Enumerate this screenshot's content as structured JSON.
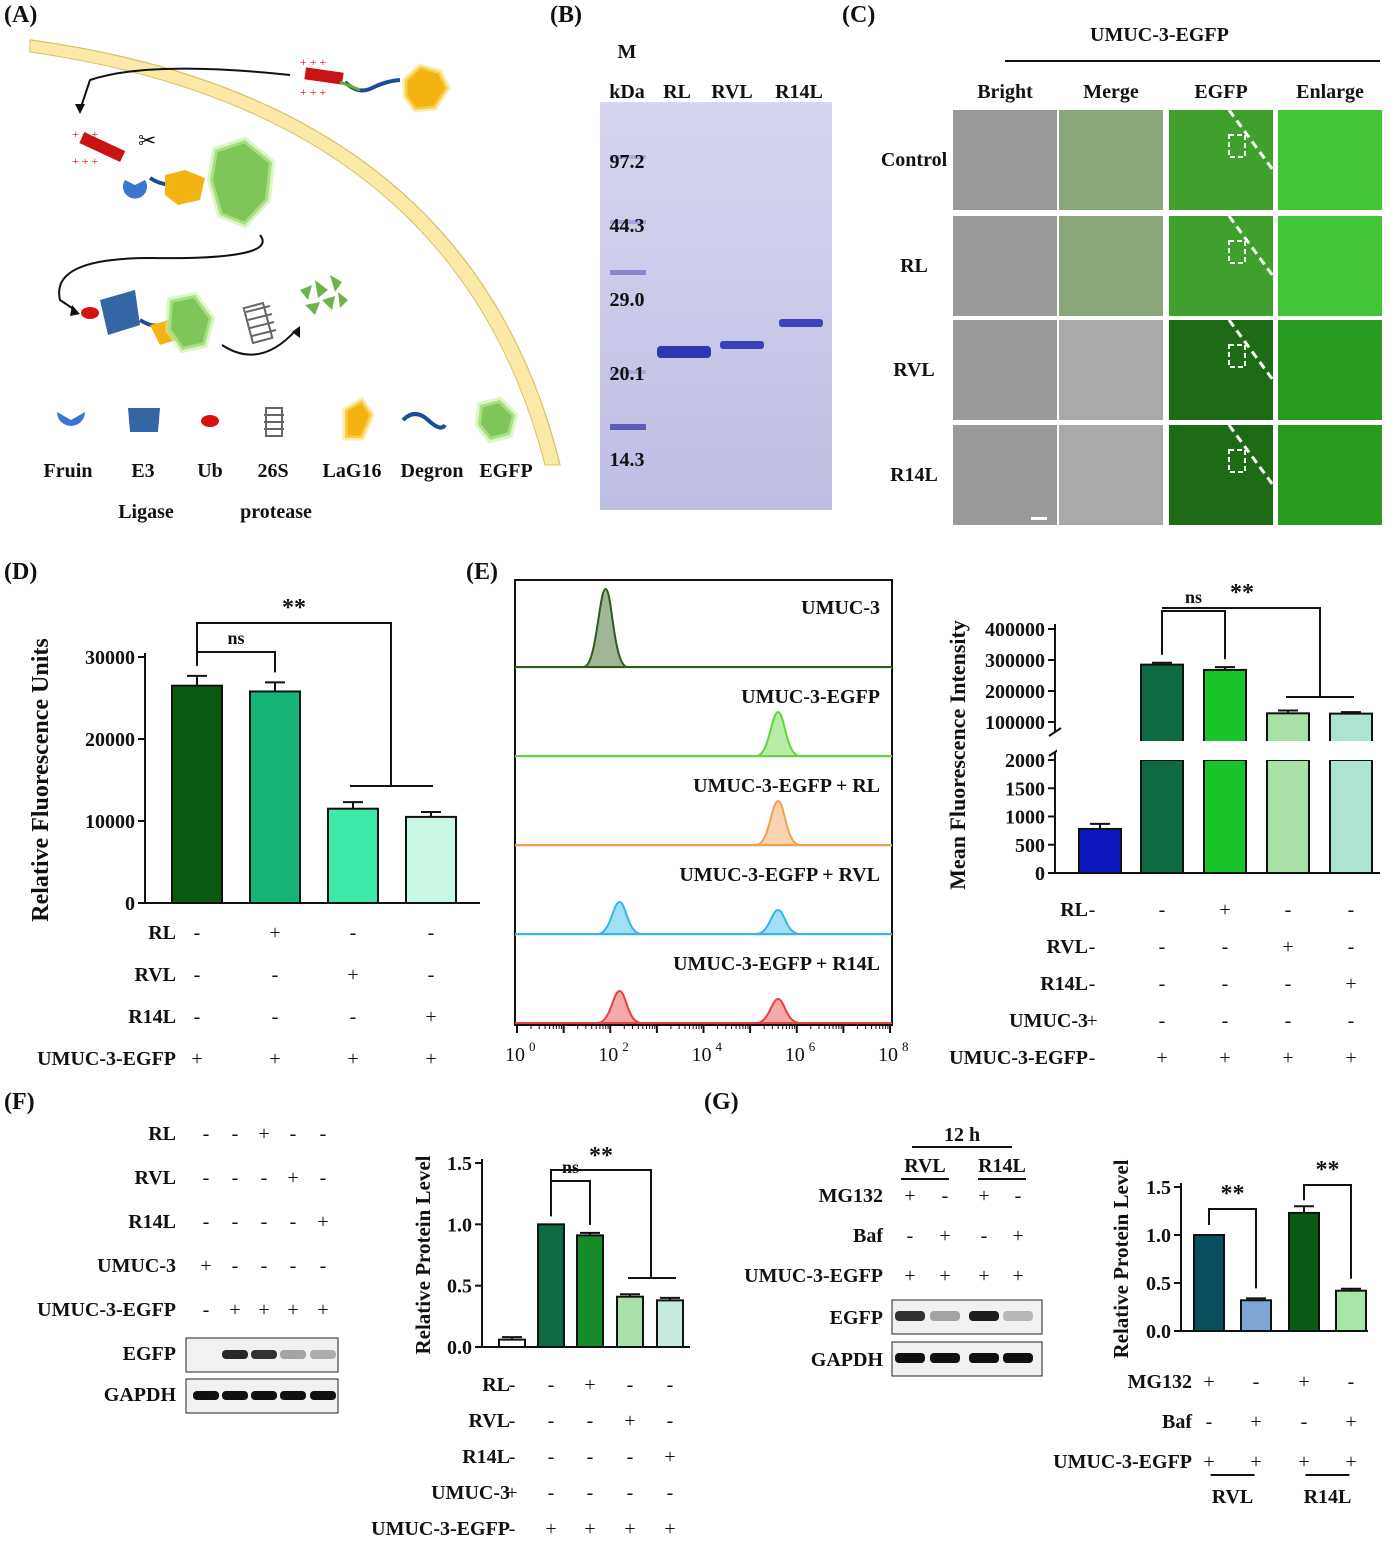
{
  "panels": {
    "A": {
      "label": "(A)",
      "legend": [
        {
          "name": "Fruin",
          "sub": ""
        },
        {
          "name": "E3",
          "sub": "Ligase"
        },
        {
          "name": "Ub",
          "sub": ""
        },
        {
          "name": "26S",
          "sub": "protease"
        },
        {
          "name": "LaG16",
          "sub": ""
        },
        {
          "name": "Degron",
          "sub": ""
        },
        {
          "name": "EGFP",
          "sub": ""
        }
      ]
    },
    "B": {
      "label": "(B)",
      "marker_label": "M",
      "unit": "kDa",
      "lanes": [
        "RL",
        "RVL",
        "R14L"
      ],
      "markers": [
        "97.2",
        "44.3",
        "29.0",
        "20.1",
        "14.3"
      ]
    },
    "C": {
      "label": "(C)",
      "title": "UMUC-3-EGFP",
      "columns": [
        "Bright",
        "Merge",
        "EGFP",
        "Enlarge"
      ],
      "rows": [
        "Control",
        "RL",
        "RVL",
        "R14L"
      ]
    },
    "D": {
      "label": "(D)",
      "ylabel": "Relative Fluorescence Units",
      "sig_main": "**",
      "sig_ns": "ns",
      "row_labels": [
        "RL",
        "RVL",
        "R14L",
        "UMUC-3-EGFP"
      ],
      "signs": [
        [
          "-",
          "+",
          "-",
          "-"
        ],
        [
          "-",
          "-",
          "+",
          "-"
        ],
        [
          "-",
          "-",
          "-",
          "+"
        ],
        [
          "+",
          "+",
          "+",
          "+"
        ]
      ]
    },
    "E": {
      "label": "(E)",
      "histogram_labels": [
        "UMUC-3",
        "UMUC-3-EGFP",
        "UMUC-3-EGFP + RL",
        "UMUC-3-EGFP + RVL",
        "UMUC-3-EGFP + R14L"
      ],
      "hist_colors": [
        "#2e5b1c",
        "#5fd63a",
        "#f0a050",
        "#30b8e8",
        "#e84040"
      ],
      "x_ticks": [
        "10",
        "10",
        "10",
        "10",
        "10"
      ],
      "x_exps": [
        "0",
        "2",
        "4",
        "6",
        "8"
      ],
      "ylabel": "Mean Fluorescence Intensity",
      "sig_main": "**",
      "sig_ns": "ns",
      "row_labels": [
        "RL",
        "RVL",
        "R14L",
        "UMUC-3",
        "UMUC-3-EGFP"
      ],
      "signs": [
        [
          "-",
          "-",
          "+",
          "-",
          "-"
        ],
        [
          "-",
          "-",
          "-",
          "+",
          "-"
        ],
        [
          "-",
          "-",
          "-",
          "-",
          "+"
        ],
        [
          "+",
          "-",
          "-",
          "-",
          "-"
        ],
        [
          "-",
          "+",
          "+",
          "+",
          "+"
        ]
      ]
    },
    "F": {
      "label": "(F)",
      "blot_rows": [
        "RL",
        "RVL",
        "R14L",
        "UMUC-3",
        "UMUC-3-EGFP"
      ],
      "blot_signs": [
        [
          "-",
          "-",
          "+",
          "-",
          "-"
        ],
        [
          "-",
          "-",
          "-",
          "+",
          "-"
        ],
        [
          "-",
          "-",
          "-",
          "-",
          "+"
        ],
        [
          "+",
          "-",
          "-",
          "-",
          "-"
        ],
        [
          "-",
          "+",
          "+",
          "+",
          "+"
        ]
      ],
      "bands": [
        "EGFP",
        "GAPDH"
      ],
      "ylabel": "Relative Protein Level",
      "sig_main": "**",
      "sig_ns": "ns",
      "row_labels": [
        "RL",
        "RVL",
        "R14L",
        "UMUC-3",
        "UMUC-3-EGFP"
      ],
      "signs": [
        [
          "-",
          "-",
          "+",
          "-",
          "-"
        ],
        [
          "-",
          "-",
          "-",
          "+",
          "-"
        ],
        [
          "-",
          "-",
          "-",
          "-",
          "+"
        ],
        [
          "+",
          "-",
          "-",
          "-",
          "-"
        ],
        [
          "-",
          "+",
          "+",
          "+",
          "+"
        ]
      ]
    },
    "G": {
      "label": "(G)",
      "time": "12 h",
      "groups": [
        "RVL",
        "R14L"
      ],
      "blot_rows": [
        "MG132",
        "Baf",
        "UMUC-3-EGFP"
      ],
      "blot_signs": [
        [
          "+",
          "-",
          "+",
          "-"
        ],
        [
          "-",
          "+",
          "-",
          "+"
        ],
        [
          "+",
          "+",
          "+",
          "+"
        ]
      ],
      "bands": [
        "EGFP",
        "GAPDH"
      ],
      "ylabel": "Relative Protein Level",
      "sig": [
        "**",
        "**"
      ],
      "row_labels": [
        "MG132",
        "Baf",
        "UMUC-3-EGFP"
      ],
      "signs": [
        [
          "+",
          "-",
          "+",
          "-"
        ],
        [
          "-",
          "+",
          "-",
          "+"
        ],
        [
          "+",
          "+",
          "+",
          "+"
        ]
      ]
    }
  },
  "chart_data": [
    {
      "panel": "D",
      "type": "bar",
      "categories": [
        "UMUC-3-EGFP",
        "UMUC-3-EGFP + RL",
        "UMUC-3-EGFP + RVL",
        "UMUC-3-EGFP + R14L"
      ],
      "values": [
        26500,
        25800,
        11500,
        10500
      ],
      "errors": [
        1200,
        1100,
        800,
        600
      ],
      "colors": [
        "#0b5a12",
        "#14b577",
        "#3ee8a8",
        "#c8f7e3"
      ],
      "ylabel": "Relative Fluorescence Units",
      "ylim": [
        0,
        30000
      ],
      "yticks": [
        "0",
        "10000",
        "20000",
        "30000"
      ],
      "ytick_values": [
        0,
        10000,
        20000,
        30000
      ]
    },
    {
      "panel": "E",
      "type": "bar",
      "categories": [
        "UMUC-3",
        "UMUC-3-EGFP",
        "UMUC-3-EGFP + RL",
        "UMUC-3-EGFP + RVL",
        "UMUC-3-EGFP + R14L"
      ],
      "values": [
        780,
        285000,
        268000,
        128000,
        127000
      ],
      "errors": [
        90,
        6000,
        9000,
        9000,
        5000
      ],
      "colors": [
        "#0c17c0",
        "#0d6a42",
        "#19c42a",
        "#a8e0a8",
        "#aee3cf"
      ],
      "ylabel": "Mean Fluorescence Intensity",
      "yticks_lower": [
        "0",
        "500",
        "1000",
        "1500",
        "2000"
      ],
      "ytick_values_lower": [
        0,
        500,
        1000,
        1500,
        2000
      ],
      "yticks_upper": [
        "100000",
        "200000",
        "300000",
        "400000"
      ],
      "ytick_values_upper": [
        100000,
        200000,
        300000,
        400000
      ],
      "axis_break": true
    },
    {
      "panel": "F",
      "type": "bar",
      "categories": [
        "UMUC-3",
        "UMUC-3-EGFP",
        "UMUC-3-EGFP + RL",
        "UMUC-3-EGFP + RVL",
        "UMUC-3-EGFP + R14L"
      ],
      "values": [
        0.06,
        1.0,
        0.91,
        0.41,
        0.38
      ],
      "errors": [
        0.02,
        0.0,
        0.02,
        0.02,
        0.02
      ],
      "colors": [
        "#ffffff",
        "#0d6a42",
        "#178a2a",
        "#a8e0a8",
        "#c6ebdd"
      ],
      "ylabel": "Relative Protein Level",
      "ylim": [
        0,
        1.5
      ],
      "yticks": [
        "0.0",
        "0.5",
        "1.0",
        "1.5"
      ],
      "ytick_values": [
        0,
        0.5,
        1.0,
        1.5
      ]
    },
    {
      "panel": "G",
      "type": "bar",
      "categories": [
        "RVL MG132",
        "RVL Baf",
        "R14L MG132",
        "R14L Baf"
      ],
      "values": [
        1.0,
        0.32,
        1.23,
        0.42
      ],
      "errors": [
        0.0,
        0.02,
        0.07,
        0.02
      ],
      "colors": [
        "#0a4f5e",
        "#7fa6d2",
        "#0d5a18",
        "#a8e6a8"
      ],
      "ylabel": "Relative Protein Level",
      "ylim": [
        0,
        1.5
      ],
      "yticks": [
        "0.0",
        "0.5",
        "1.0",
        "1.5"
      ],
      "ytick_values": [
        0,
        0.5,
        1.0,
        1.5
      ]
    }
  ]
}
